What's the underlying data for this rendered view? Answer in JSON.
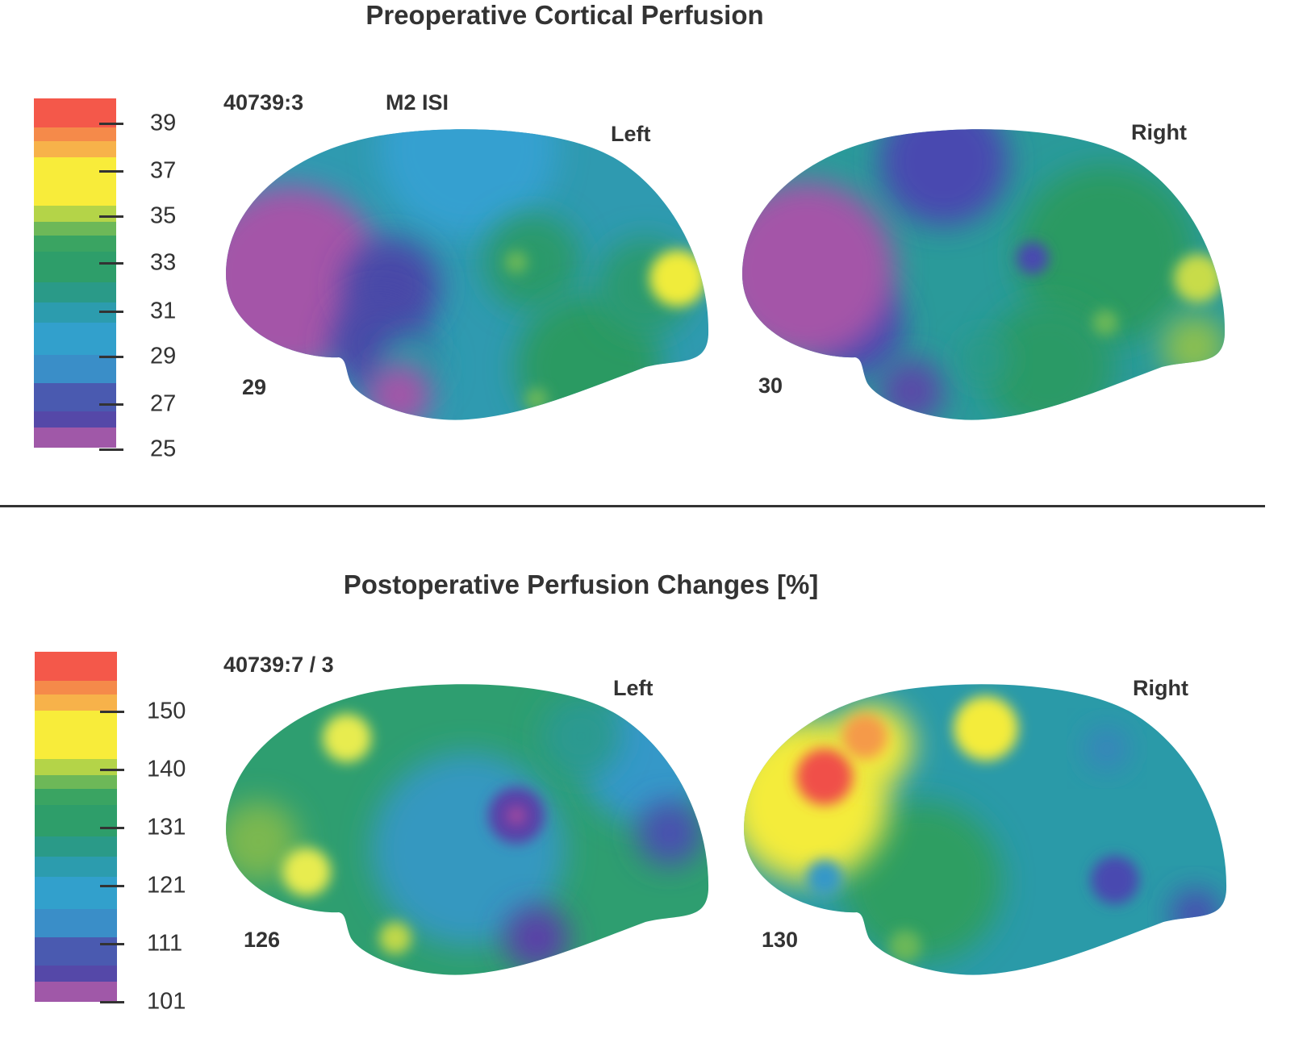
{
  "chart_data": {
    "type": "heatmap",
    "panels": [
      {
        "title": "Preoperative Cortical Perfusion",
        "id_label": "40739:3",
        "method_label": "M2 ISI",
        "colorbar": {
          "ticks": [
            "39",
            "37",
            "35",
            "33",
            "31",
            "29",
            "27",
            "25"
          ],
          "range": [
            25,
            40
          ],
          "colors": [
            "#f4584a",
            "#f58a4a",
            "#f7b24a",
            "#f8ec3a",
            "#b4d448",
            "#6db858",
            "#3aa462",
            "#2e9e6a",
            "#2a9a88",
            "#2c9cae",
            "#32a0cc",
            "#3a8ec8",
            "#4a5ab0",
            "#5548a8",
            "#a058a8"
          ]
        },
        "maps": [
          {
            "hemisphere": "Left",
            "value": "29"
          },
          {
            "hemisphere": "Right",
            "value": "30"
          }
        ]
      },
      {
        "title": "Postoperative Perfusion Changes [%]",
        "id_label": "40739:7 / 3",
        "colorbar": {
          "ticks": [
            "150",
            "140",
            "131",
            "121",
            "111",
            "101"
          ],
          "range": [
            101,
            160
          ],
          "colors": [
            "#f4584a",
            "#f58a4a",
            "#f7b24a",
            "#f8ec3a",
            "#b4d448",
            "#6db858",
            "#3aa462",
            "#2e9e6a",
            "#2a9a88",
            "#2c9cae",
            "#32a0cc",
            "#3a8ec8",
            "#4a5ab0",
            "#5548a8",
            "#a058a8"
          ]
        },
        "maps": [
          {
            "hemisphere": "Left",
            "value": "126"
          },
          {
            "hemisphere": "Right",
            "value": "130"
          }
        ]
      }
    ]
  }
}
